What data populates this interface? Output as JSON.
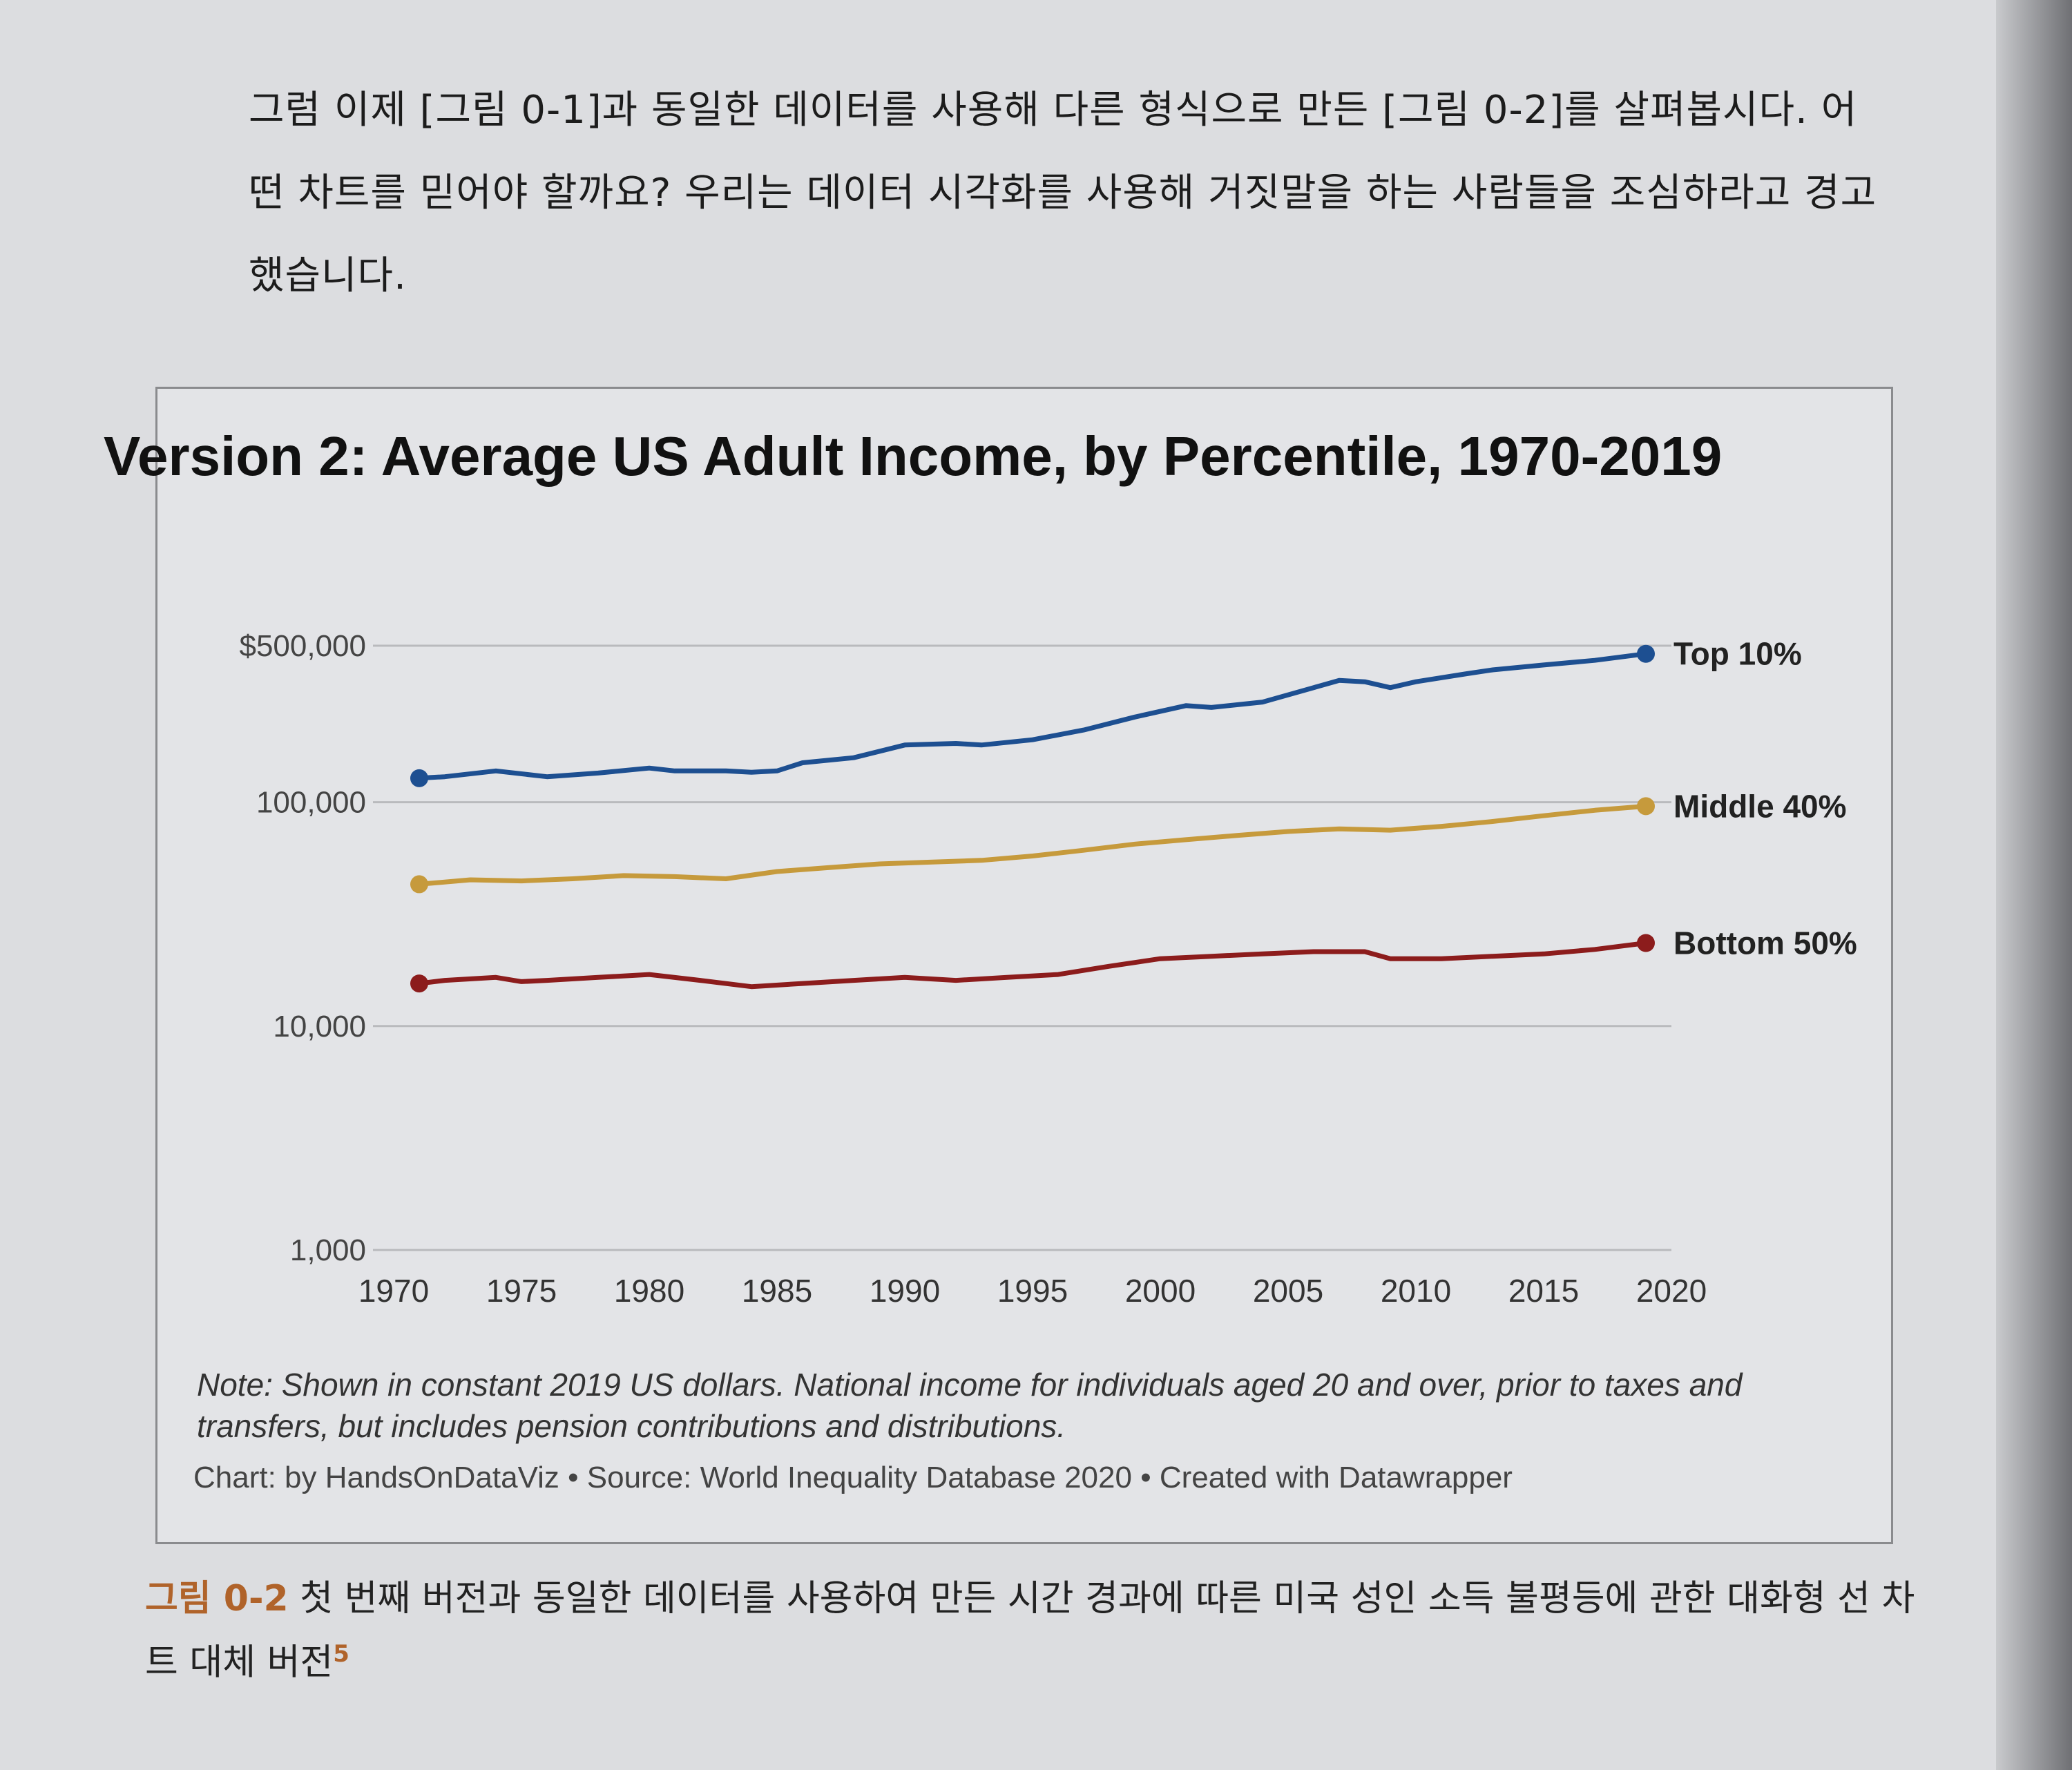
{
  "body_text": "그럼 이제 [그림 0-1]과 동일한 데이터를 사용해 다른 형식으로 만든 [그림 0-2]를 살펴봅시다. 어떤 차트를 믿어야 할까요? 우리는 데이터 시각화를 사용해 거짓말을 하는 사람들을 조심하라고 경고했습니다.",
  "chart_data": {
    "type": "line",
    "title": "Version 2: Average US Adult Income, by Percentile, 1970-2019",
    "y_scale": "log",
    "ylim": [
      1000,
      500000
    ],
    "y_ticks": [
      {
        "value": 1000,
        "label": "1,000"
      },
      {
        "value": 10000,
        "label": "10,000"
      },
      {
        "value": 100000,
        "label": "100,000"
      },
      {
        "value": 500000,
        "label": "$500,000"
      }
    ],
    "xlim": [
      1970,
      2020
    ],
    "x_ticks": [
      "1970",
      "1975",
      "1980",
      "1985",
      "1990",
      "1995",
      "2000",
      "2005",
      "2010",
      "2015",
      "2020"
    ],
    "grid": true,
    "series": [
      {
        "name": "Top 10%",
        "color": "#1d4f91",
        "x": [
          1971,
          1972,
          1974,
          1976,
          1978,
          1980,
          1981,
          1983,
          1984,
          1985,
          1986,
          1988,
          1990,
          1992,
          1993,
          1995,
          1997,
          1999,
          2001,
          2002,
          2004,
          2006,
          2007,
          2008,
          2009,
          2010,
          2012,
          2013,
          2015,
          2017,
          2019
        ],
        "y": [
          128000,
          130000,
          138000,
          130000,
          135000,
          142000,
          138000,
          138000,
          136000,
          138000,
          150000,
          158000,
          180000,
          183000,
          180000,
          190000,
          210000,
          240000,
          270000,
          265000,
          280000,
          325000,
          350000,
          345000,
          325000,
          345000,
          375000,
          390000,
          410000,
          430000,
          460000
        ]
      },
      {
        "name": "Middle 40%",
        "color": "#c69a3c",
        "x": [
          1971,
          1973,
          1975,
          1977,
          1979,
          1981,
          1983,
          1985,
          1987,
          1989,
          1991,
          1993,
          1995,
          1997,
          1999,
          2001,
          2003,
          2005,
          2007,
          2009,
          2011,
          2013,
          2015,
          2017,
          2019
        ],
        "y": [
          43000,
          45000,
          44500,
          45500,
          47000,
          46500,
          45500,
          49000,
          51000,
          53000,
          54000,
          55000,
          57500,
          61000,
          65000,
          68000,
          71000,
          74000,
          76000,
          75000,
          78000,
          82000,
          87000,
          92000,
          96000
        ]
      },
      {
        "name": "Bottom 50%",
        "color": "#8c1c1c",
        "x": [
          1971,
          1972,
          1974,
          1975,
          1976,
          1978,
          1980,
          1982,
          1984,
          1986,
          1988,
          1990,
          1992,
          1994,
          1996,
          1998,
          2000,
          2002,
          2004,
          2006,
          2008,
          2009,
          2011,
          2013,
          2015,
          2017,
          2019
        ],
        "y": [
          15500,
          16000,
          16500,
          15800,
          16000,
          16500,
          17000,
          16000,
          15000,
          15500,
          16000,
          16500,
          16000,
          16500,
          17000,
          18500,
          20000,
          20500,
          21000,
          21500,
          21500,
          20000,
          20000,
          20500,
          21000,
          22000,
          23500
        ]
      }
    ]
  },
  "note": "Note: Shown in constant 2019 US dollars. National income for individuals aged 20 and over, prior to taxes and transfers, but includes pension contributions and distributions.",
  "credit": "Chart: by HandsOnDataViz • Source: World Inequality Database 2020 • Created with Datawrapper",
  "caption": {
    "label": "그림 0-2",
    "text": " 첫 번째 버전과 동일한 데이터를 사용하여 만든 시간 경과에 따른 미국 성인 소득 불평등에 관한 대화형 선 차트 대체 버전",
    "footnote": "5"
  }
}
